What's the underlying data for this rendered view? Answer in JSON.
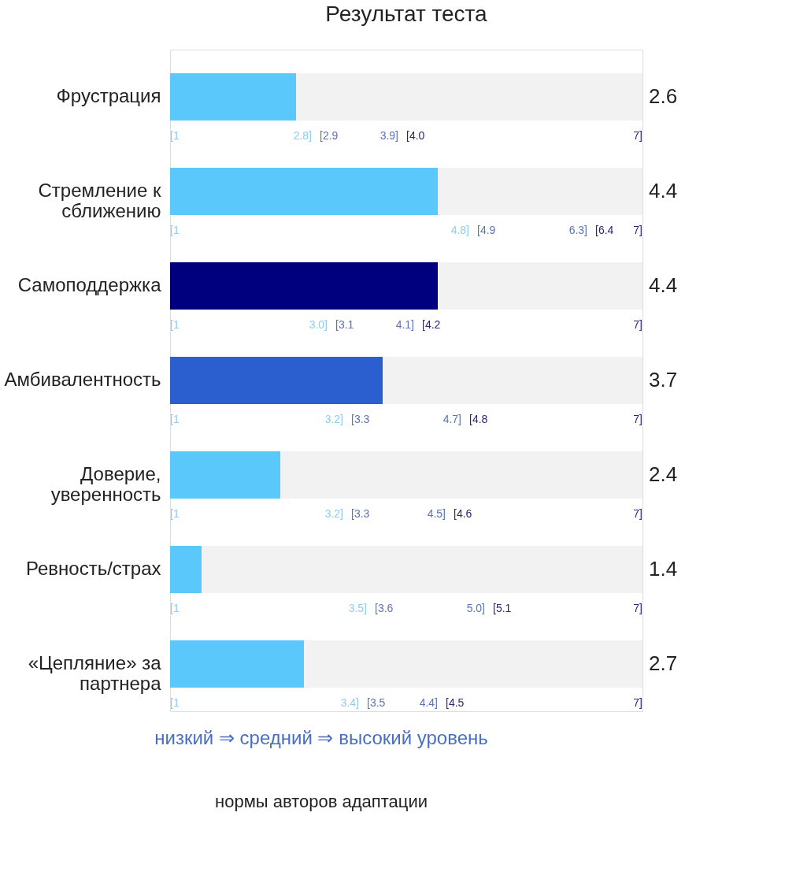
{
  "chart_data": {
    "type": "bar",
    "orientation": "horizontal",
    "title": "Результат теста",
    "categories": [
      "Фрустрация",
      "Стремление к сближению",
      "Самоподдержка",
      "Амбивалентность",
      "Доверие, уверенность",
      "Ревность/страх",
      "«Цепляние» за партнера"
    ],
    "values": [
      2.6,
      4.4,
      4.4,
      3.7,
      2.4,
      1.4,
      2.7
    ],
    "colors": [
      "#5ac8fa",
      "#5ac8fa",
      "#00007f",
      "#2b5fd0",
      "#5ac8fa",
      "#5ac8fa",
      "#5ac8fa"
    ],
    "xlim": [
      1,
      7
    ],
    "data_labels": true,
    "tick_labels": "y",
    "annotations": [
      "[1",
      "2.8]",
      "[2.9",
      "3.9]",
      "[4.0",
      "7]",
      "[1",
      "4.8]",
      "[4.9",
      "6.3]",
      "[6.4",
      "7]",
      "[1",
      "3.0]",
      "[3.1",
      "4.1]",
      "[4.2",
      "7]",
      "[1",
      "3.2]",
      "[3.3",
      "4.7]",
      "[4.8",
      "7]",
      "[1",
      "3.2]",
      "[3.3",
      "4.5]",
      "[4.6",
      "7]",
      "[1",
      "3.5]",
      "[3.6",
      "5.0]",
      "[5.1",
      "7]",
      "[1",
      "3.4]",
      "[3.5",
      "4.4]",
      "[4.5",
      "7]",
      "низкий ⇒ средний ⇒ высокий уровень",
      "нормы авторов адаптации"
    ]
  }
}
